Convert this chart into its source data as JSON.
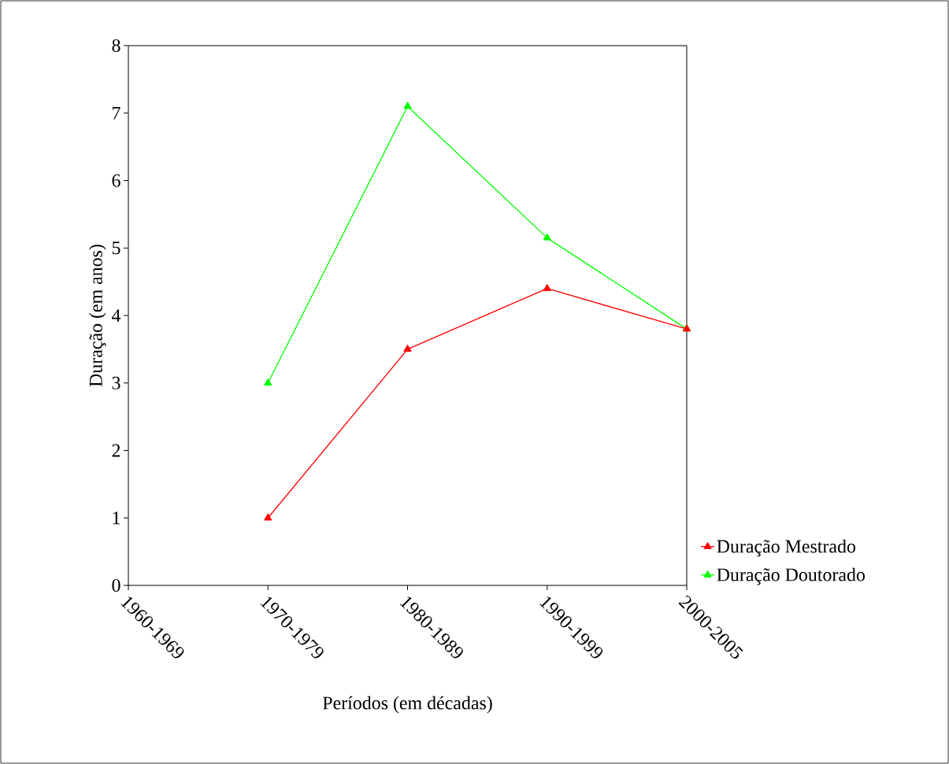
{
  "chart_data": {
    "type": "line",
    "xlabel": "Períodos (em décadas)",
    "ylabel": "Duração (em anos)",
    "categories": [
      "1960-1969",
      "1970-1979",
      "1980-1989",
      "1990-1999",
      "2000-2005"
    ],
    "series": [
      {
        "name": "Duração Mestrado",
        "color": "#ff0000",
        "values": [
          null,
          1.0,
          3.5,
          4.4,
          3.8
        ]
      },
      {
        "name": "Duração Doutorado",
        "color": "#00ff00",
        "values": [
          null,
          3.0,
          7.1,
          5.15,
          3.8
        ]
      }
    ],
    "ylim": [
      0,
      8
    ],
    "yticks": [
      0,
      1,
      2,
      3,
      4,
      5,
      6,
      7,
      8
    ],
    "grid": false,
    "legend": "right",
    "marker": "triangle",
    "line_style": "solid"
  }
}
